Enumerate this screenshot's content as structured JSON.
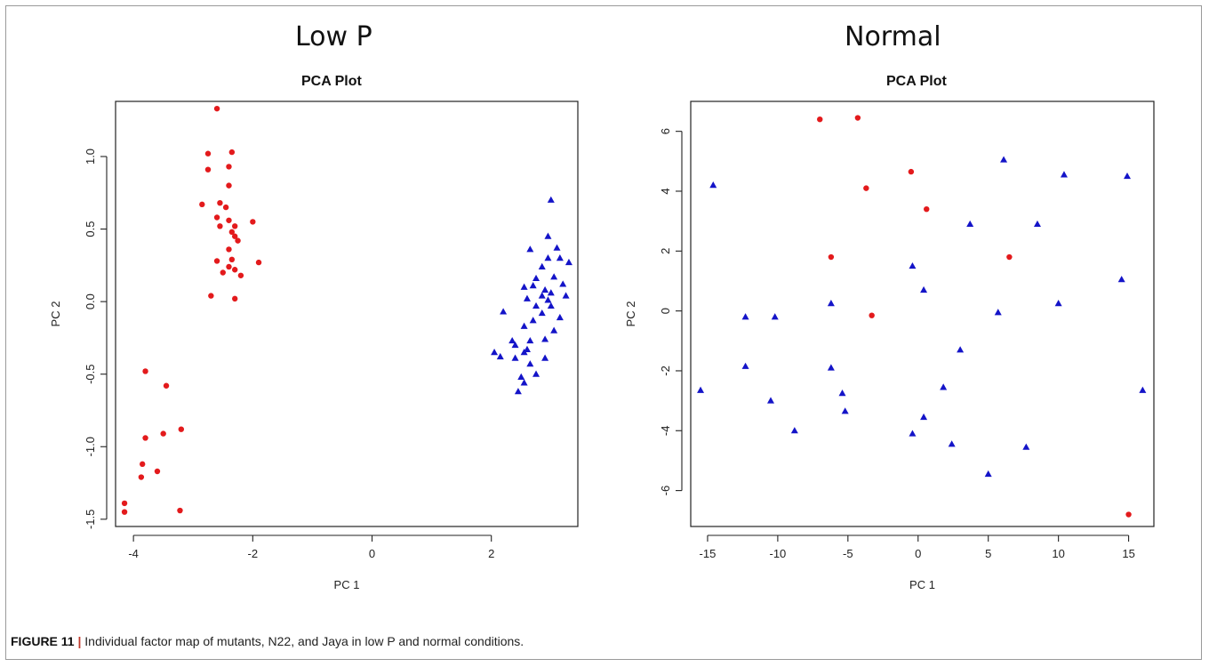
{
  "figure": {
    "caption_label": "FIGURE 11",
    "caption_sep": "|",
    "caption_text": "Individual factor map of mutants, N22, and Jaya in low P and normal conditions."
  },
  "colors": {
    "red": "#e31a1c",
    "blue": "#1414c8",
    "axis": "#222222"
  },
  "chart_data": [
    {
      "type": "scatter",
      "panel_title": "Low P",
      "title": "PCA Plot",
      "xlabel": "PC 1",
      "ylabel": "PC 2",
      "xlim": [
        -4.3,
        3.45
      ],
      "ylim": [
        -1.55,
        1.38
      ],
      "xticks": [
        -4,
        -2,
        0,
        2
      ],
      "yticks": [
        -1.5,
        -1.0,
        -0.5,
        0.0,
        0.5,
        1.0
      ],
      "yticklabels": [
        "-1.5",
        "-1.0",
        "-0.5",
        "0.0",
        "0.5",
        "1.0"
      ],
      "series": [
        {
          "marker": "circle",
          "color": "#e31a1c",
          "points": [
            [
              -2.6,
              1.33
            ],
            [
              -2.75,
              1.02
            ],
            [
              -2.35,
              1.03
            ],
            [
              -2.4,
              0.93
            ],
            [
              -2.75,
              0.91
            ],
            [
              -2.4,
              0.8
            ],
            [
              -2.85,
              0.67
            ],
            [
              -2.55,
              0.68
            ],
            [
              -2.45,
              0.65
            ],
            [
              -2.6,
              0.58
            ],
            [
              -2.4,
              0.56
            ],
            [
              -2.3,
              0.52
            ],
            [
              -2.0,
              0.55
            ],
            [
              -2.55,
              0.52
            ],
            [
              -2.35,
              0.48
            ],
            [
              -2.3,
              0.45
            ],
            [
              -2.25,
              0.42
            ],
            [
              -2.4,
              0.36
            ],
            [
              -2.6,
              0.28
            ],
            [
              -2.35,
              0.29
            ],
            [
              -1.9,
              0.27
            ],
            [
              -2.5,
              0.2
            ],
            [
              -2.4,
              0.24
            ],
            [
              -2.3,
              0.22
            ],
            [
              -2.2,
              0.18
            ],
            [
              -2.7,
              0.04
            ],
            [
              -2.3,
              0.02
            ],
            [
              -3.8,
              -0.48
            ],
            [
              -3.45,
              -0.58
            ],
            [
              -3.2,
              -0.88
            ],
            [
              -3.5,
              -0.91
            ],
            [
              -3.8,
              -0.94
            ],
            [
              -3.85,
              -1.12
            ],
            [
              -3.6,
              -1.17
            ],
            [
              -3.87,
              -1.21
            ],
            [
              -4.15,
              -1.39
            ],
            [
              -4.15,
              -1.45
            ],
            [
              -3.22,
              -1.44
            ]
          ]
        },
        {
          "marker": "triangle",
          "color": "#1414c8",
          "points": [
            [
              3.0,
              0.7
            ],
            [
              2.95,
              0.45
            ],
            [
              3.1,
              0.37
            ],
            [
              2.65,
              0.36
            ],
            [
              2.95,
              0.3
            ],
            [
              3.15,
              0.3
            ],
            [
              3.3,
              0.27
            ],
            [
              2.85,
              0.24
            ],
            [
              2.75,
              0.16
            ],
            [
              3.05,
              0.17
            ],
            [
              2.7,
              0.11
            ],
            [
              2.55,
              0.1
            ],
            [
              3.2,
              0.12
            ],
            [
              2.9,
              0.08
            ],
            [
              3.0,
              0.06
            ],
            [
              2.85,
              0.04
            ],
            [
              3.25,
              0.04
            ],
            [
              2.6,
              0.02
            ],
            [
              2.95,
              0.01
            ],
            [
              3.0,
              -0.03
            ],
            [
              2.75,
              -0.03
            ],
            [
              2.2,
              -0.07
            ],
            [
              2.85,
              -0.08
            ],
            [
              3.15,
              -0.11
            ],
            [
              2.7,
              -0.13
            ],
            [
              2.55,
              -0.17
            ],
            [
              3.05,
              -0.2
            ],
            [
              2.9,
              -0.26
            ],
            [
              2.35,
              -0.27
            ],
            [
              2.65,
              -0.27
            ],
            [
              2.4,
              -0.3
            ],
            [
              2.6,
              -0.33
            ],
            [
              2.55,
              -0.35
            ],
            [
              2.05,
              -0.35
            ],
            [
              2.15,
              -0.38
            ],
            [
              2.4,
              -0.39
            ],
            [
              2.9,
              -0.39
            ],
            [
              2.65,
              -0.43
            ],
            [
              2.75,
              -0.5
            ],
            [
              2.5,
              -0.52
            ],
            [
              2.55,
              -0.56
            ],
            [
              2.45,
              -0.62
            ]
          ]
        }
      ]
    },
    {
      "type": "scatter",
      "panel_title": "Normal",
      "title": "PCA Plot",
      "xlabel": "PC 1",
      "ylabel": "PC 2",
      "xlim": [
        -16.2,
        16.8
      ],
      "ylim": [
        -7.2,
        7.0
      ],
      "xticks": [
        -15,
        -10,
        -5,
        0,
        5,
        10,
        15
      ],
      "yticks": [
        -6,
        -4,
        -2,
        0,
        2,
        4,
        6
      ],
      "yticklabels": [
        "-6",
        "-4",
        "-2",
        "0",
        "2",
        "4",
        "6"
      ],
      "series": [
        {
          "marker": "circle",
          "color": "#e31a1c",
          "points": [
            [
              -7.0,
              6.4
            ],
            [
              -4.3,
              6.45
            ],
            [
              -0.5,
              4.65
            ],
            [
              -3.7,
              4.1
            ],
            [
              0.6,
              3.4
            ],
            [
              -6.2,
              1.8
            ],
            [
              6.5,
              1.8
            ],
            [
              -3.3,
              -0.15
            ],
            [
              15.0,
              -6.8
            ]
          ]
        },
        {
          "marker": "triangle",
          "color": "#1414c8",
          "points": [
            [
              -14.6,
              4.2
            ],
            [
              6.1,
              5.05
            ],
            [
              10.4,
              4.55
            ],
            [
              14.9,
              4.5
            ],
            [
              3.7,
              2.9
            ],
            [
              8.5,
              2.9
            ],
            [
              -0.4,
              1.5
            ],
            [
              0.4,
              0.7
            ],
            [
              -6.2,
              0.25
            ],
            [
              14.5,
              1.05
            ],
            [
              10.0,
              0.25
            ],
            [
              5.7,
              -0.05
            ],
            [
              -12.3,
              -0.2
            ],
            [
              -10.2,
              -0.2
            ],
            [
              -6.2,
              -1.9
            ],
            [
              -12.3,
              -1.85
            ],
            [
              3.0,
              -1.3
            ],
            [
              -15.5,
              -2.65
            ],
            [
              -5.4,
              -2.75
            ],
            [
              1.8,
              -2.55
            ],
            [
              16.0,
              -2.65
            ],
            [
              -10.5,
              -3.0
            ],
            [
              -5.2,
              -3.35
            ],
            [
              0.4,
              -3.55
            ],
            [
              -8.8,
              -4.0
            ],
            [
              -0.4,
              -4.1
            ],
            [
              2.4,
              -4.45
            ],
            [
              7.7,
              -4.55
            ],
            [
              5.0,
              -5.45
            ]
          ]
        }
      ]
    }
  ]
}
